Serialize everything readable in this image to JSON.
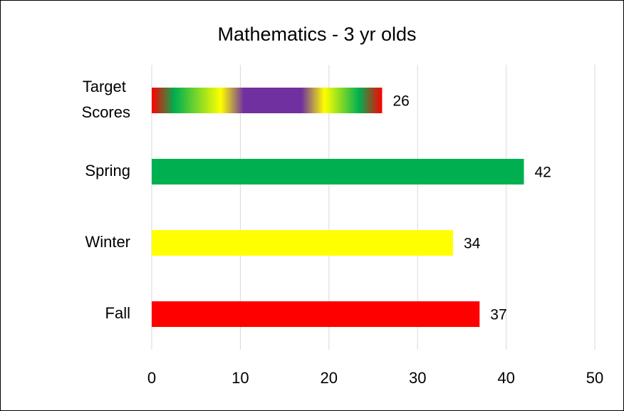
{
  "chart_data": {
    "type": "bar",
    "orientation": "horizontal",
    "title": "Mathematics - 3 yr olds",
    "categories": [
      "Target Scores",
      "Spring",
      "Winter",
      "Fall"
    ],
    "values": [
      26,
      42,
      34,
      37
    ],
    "colors": [
      [
        "#ff0000",
        "#00b050",
        "#ffff00",
        "#7030a0",
        "#7030a0",
        "#ffff00",
        "#00b050",
        "#ff0000"
      ],
      "#00b050",
      "#ffff00",
      "#ff0000"
    ],
    "xlim": [
      0,
      50
    ],
    "xticks": [
      0,
      10,
      20,
      30,
      40,
      50
    ],
    "grid": true
  }
}
